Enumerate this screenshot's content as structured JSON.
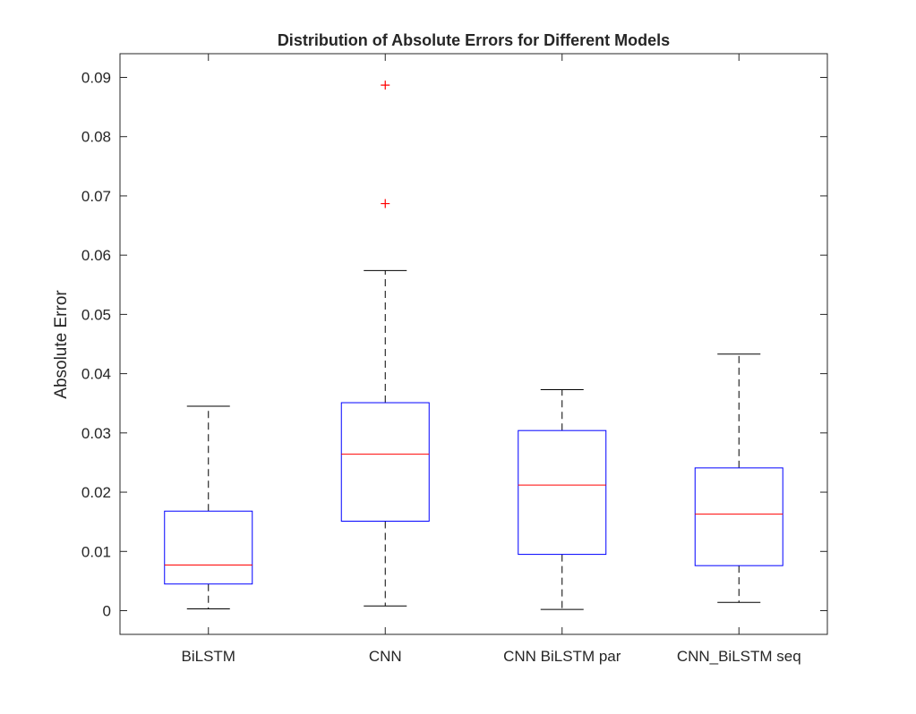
{
  "chart_data": {
    "type": "boxplot",
    "title": "Distribution of Absolute Errors for Different Models",
    "xlabel": "",
    "ylabel": "Absolute Error",
    "ylim": [
      -0.004,
      0.094
    ],
    "yticks": [
      0,
      0.01,
      0.02,
      0.03,
      0.04,
      0.05,
      0.06,
      0.07,
      0.08,
      0.09
    ],
    "ytick_labels": [
      "0",
      "0.01",
      "0.02",
      "0.03",
      "0.04",
      "0.05",
      "0.06",
      "0.07",
      "0.08",
      "0.09"
    ],
    "grid": false,
    "categories": [
      "BiLSTM",
      "CNN",
      "CNN BiLSTM par",
      "CNN_BiLSTM seq"
    ],
    "boxes": [
      {
        "whisker_low": 0.0003,
        "q1": 0.0045,
        "median": 0.0077,
        "q3": 0.0168,
        "whisker_high": 0.0345,
        "outliers": []
      },
      {
        "whisker_low": 0.0008,
        "q1": 0.0151,
        "median": 0.0264,
        "q3": 0.0351,
        "whisker_high": 0.0574,
        "outliers": [
          0.0687,
          0.0887
        ]
      },
      {
        "whisker_low": 0.0002,
        "q1": 0.0095,
        "median": 0.0212,
        "q3": 0.0304,
        "whisker_high": 0.0373,
        "outliers": []
      },
      {
        "whisker_low": 0.0014,
        "q1": 0.0076,
        "median": 0.0163,
        "q3": 0.0241,
        "whisker_high": 0.0433,
        "outliers": []
      }
    ],
    "colors": {
      "box": "#0000ff",
      "median": "#ff0000",
      "whisker": "#000000",
      "outlier": "#ff0000",
      "axes": "#262626"
    }
  }
}
